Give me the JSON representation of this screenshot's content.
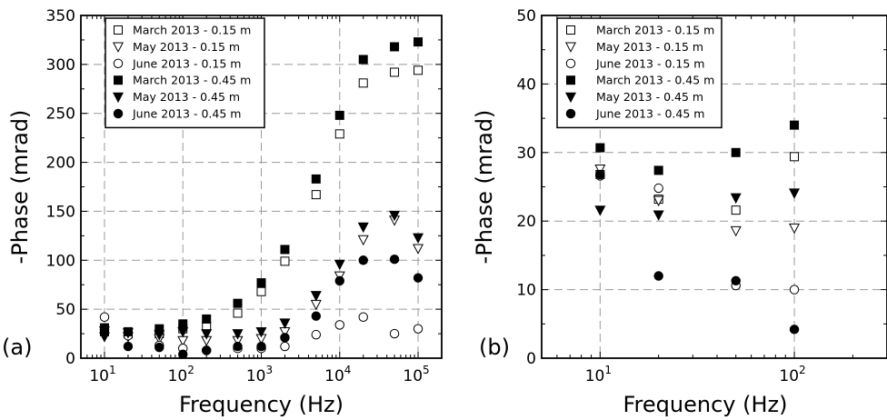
{
  "chart_data": [
    {
      "type": "scatter",
      "panel_label": "(a)",
      "xlabel": "Frequency (Hz)",
      "ylabel": "-Phase (mrad)",
      "xscale": "log",
      "xlim": [
        5,
        200000
      ],
      "ylim": [
        0,
        350
      ],
      "xticks": [
        10,
        100,
        1000,
        10000,
        100000
      ],
      "xtick_labels": [
        {
          "base": "10",
          "exp": "1"
        },
        {
          "base": "10",
          "exp": "2"
        },
        {
          "base": "10",
          "exp": "3"
        },
        {
          "base": "10",
          "exp": "4"
        },
        {
          "base": "10",
          "exp": "5"
        }
      ],
      "yticks": [
        0,
        50,
        100,
        150,
        200,
        250,
        300,
        350
      ],
      "ytick_labels": [
        "0",
        "50",
        "100",
        "150",
        "200",
        "250",
        "300",
        "350"
      ],
      "grid": true,
      "legend_position": "upper-left",
      "series": [
        {
          "name": "March 2013 - 0.15 m",
          "marker": "square-open",
          "x": [
            10,
            20,
            50,
            100,
            200,
            500,
            1000,
            2000,
            5000,
            10000,
            20000,
            50000,
            100000
          ],
          "y": [
            27,
            25,
            25,
            30,
            33,
            46,
            68,
            99,
            167,
            229,
            281,
            292,
            294
          ]
        },
        {
          "name": "May 2013 - 0.15 m",
          "marker": "triangle-down-open",
          "x": [
            10,
            20,
            50,
            100,
            200,
            500,
            1000,
            2000,
            5000,
            10000,
            20000,
            50000,
            100000
          ],
          "y": [
            28,
            22,
            20,
            18,
            18,
            18,
            20,
            27,
            55,
            84,
            121,
            141,
            112
          ]
        },
        {
          "name": "June 2013 - 0.15 m",
          "marker": "circle-open",
          "x": [
            10,
            20,
            50,
            100,
            200,
            500,
            1000,
            2000,
            5000,
            10000,
            20000,
            50000,
            100000
          ],
          "y": [
            42,
            23,
            13,
            10,
            8,
            10,
            10,
            12,
            24,
            34,
            42,
            25,
            30
          ]
        },
        {
          "name": "March 2013 - 0.45 m",
          "marker": "square-filled",
          "x": [
            10,
            20,
            50,
            100,
            200,
            500,
            1000,
            2000,
            5000,
            10000,
            20000,
            50000,
            100000
          ],
          "y": [
            31,
            27,
            30,
            35,
            40,
            56,
            77,
            111,
            183,
            248,
            305,
            318,
            323
          ]
        },
        {
          "name": "May 2013 - 0.45 m",
          "marker": "triangle-down-filled",
          "x": [
            10,
            20,
            50,
            100,
            200,
            500,
            1000,
            2000,
            5000,
            10000,
            20000,
            50000,
            100000
          ],
          "y": [
            22,
            26,
            24,
            27,
            25,
            25,
            27,
            36,
            64,
            96,
            134,
            146,
            123
          ]
        },
        {
          "name": "June 2013 - 0.45 m",
          "marker": "circle-filled",
          "x": [
            10,
            20,
            50,
            100,
            200,
            500,
            1000,
            2000,
            5000,
            10000,
            20000,
            50000,
            100000
          ],
          "y": [
            29,
            12,
            11,
            4,
            8,
            12,
            12,
            21,
            43,
            79,
            100,
            101,
            82
          ]
        }
      ]
    },
    {
      "type": "scatter",
      "panel_label": "(b)",
      "xlabel": "Frequency (Hz)",
      "ylabel": "-Phase (mrad)",
      "xscale": "log",
      "xlim": [
        5,
        300
      ],
      "ylim": [
        0,
        50
      ],
      "xticks": [
        10,
        100
      ],
      "xtick_labels": [
        {
          "base": "10",
          "exp": "1"
        },
        {
          "base": "10",
          "exp": "2"
        }
      ],
      "yticks": [
        0,
        10,
        20,
        30,
        40,
        50
      ],
      "ytick_labels": [
        "0",
        "10",
        "20",
        "30",
        "40",
        "50"
      ],
      "grid": true,
      "legend_position": "upper-left",
      "series": [
        {
          "name": "March 2013 - 0.15 m",
          "marker": "square-open",
          "x": [
            10,
            20,
            50,
            100
          ],
          "y": [
            26.8,
            23.2,
            21.6,
            29.4
          ]
        },
        {
          "name": "May 2013 - 0.15 m",
          "marker": "triangle-down-open",
          "x": [
            10,
            20,
            50,
            100
          ],
          "y": [
            27.6,
            23.0,
            18.6,
            19.0
          ]
        },
        {
          "name": "June 2013 - 0.15 m",
          "marker": "circle-open",
          "x": [
            10,
            20,
            50,
            100
          ],
          "y": [
            26.6,
            24.8,
            10.6,
            10.0
          ]
        },
        {
          "name": "March 2013 - 0.45 m",
          "marker": "square-filled",
          "x": [
            10,
            20,
            50,
            100
          ],
          "y": [
            30.7,
            27.4,
            30.0,
            34.0
          ]
        },
        {
          "name": "May 2013 - 0.45 m",
          "marker": "triangle-down-filled",
          "x": [
            10,
            20,
            50,
            100
          ],
          "y": [
            21.6,
            20.9,
            23.4,
            24.1
          ]
        },
        {
          "name": "June 2013 - 0.45 m",
          "marker": "circle-filled",
          "x": [
            10,
            20,
            50,
            100
          ],
          "y": [
            26.8,
            12.0,
            11.3,
            4.2
          ]
        }
      ]
    }
  ]
}
